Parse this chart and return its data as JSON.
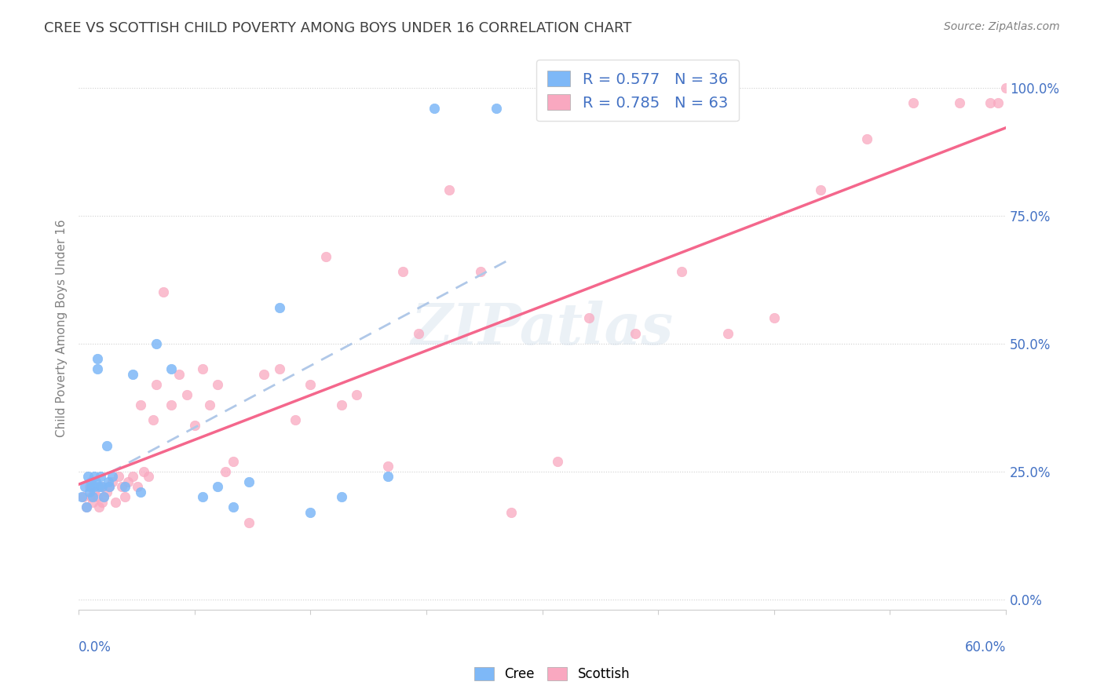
{
  "title": "CREE VS SCOTTISH CHILD POVERTY AMONG BOYS UNDER 16 CORRELATION CHART",
  "source": "Source: ZipAtlas.com",
  "ylabel": "Child Poverty Among Boys Under 16",
  "xlim": [
    0,
    0.6
  ],
  "ylim": [
    -0.02,
    1.08
  ],
  "yticks_right": [
    0.0,
    0.25,
    0.5,
    0.75,
    1.0
  ],
  "ytick_labels_right": [
    "0.0%",
    "25.0%",
    "50.0%",
    "75.0%",
    "100.0%"
  ],
  "legend_r_cree": "R = 0.577",
  "legend_n_cree": "N = 36",
  "legend_r_scot": "R = 0.785",
  "legend_n_scot": "N = 63",
  "color_cree": "#7EB8F7",
  "color_scot": "#F9A8C0",
  "color_cree_line": "#4472C4",
  "color_scot_line": "#F4678C",
  "color_title": "#404040",
  "color_source": "#808080",
  "color_axis_label": "#808080",
  "color_tick_blue": "#4472C4",
  "watermark": "ZIPatlas",
  "cree_pts": [
    [
      0.002,
      0.2
    ],
    [
      0.004,
      0.22
    ],
    [
      0.005,
      0.18
    ],
    [
      0.006,
      0.24
    ],
    [
      0.007,
      0.21
    ],
    [
      0.008,
      0.22
    ],
    [
      0.008,
      0.23
    ],
    [
      0.009,
      0.2
    ],
    [
      0.01,
      0.22
    ],
    [
      0.01,
      0.24
    ],
    [
      0.011,
      0.23
    ],
    [
      0.012,
      0.45
    ],
    [
      0.012,
      0.47
    ],
    [
      0.013,
      0.22
    ],
    [
      0.014,
      0.24
    ],
    [
      0.015,
      0.22
    ],
    [
      0.016,
      0.2
    ],
    [
      0.018,
      0.3
    ],
    [
      0.019,
      0.23
    ],
    [
      0.02,
      0.22
    ],
    [
      0.022,
      0.24
    ],
    [
      0.03,
      0.22
    ],
    [
      0.035,
      0.44
    ],
    [
      0.04,
      0.21
    ],
    [
      0.05,
      0.5
    ],
    [
      0.06,
      0.45
    ],
    [
      0.08,
      0.2
    ],
    [
      0.09,
      0.22
    ],
    [
      0.1,
      0.18
    ],
    [
      0.11,
      0.23
    ],
    [
      0.13,
      0.57
    ],
    [
      0.15,
      0.17
    ],
    [
      0.17,
      0.2
    ],
    [
      0.2,
      0.24
    ],
    [
      0.23,
      0.96
    ],
    [
      0.27,
      0.96
    ]
  ],
  "scot_pts": [
    [
      0.003,
      0.2
    ],
    [
      0.005,
      0.18
    ],
    [
      0.007,
      0.22
    ],
    [
      0.008,
      0.2
    ],
    [
      0.009,
      0.19
    ],
    [
      0.01,
      0.21
    ],
    [
      0.012,
      0.2
    ],
    [
      0.013,
      0.18
    ],
    [
      0.014,
      0.22
    ],
    [
      0.015,
      0.19
    ],
    [
      0.016,
      0.2
    ],
    [
      0.018,
      0.21
    ],
    [
      0.02,
      0.22
    ],
    [
      0.022,
      0.23
    ],
    [
      0.024,
      0.19
    ],
    [
      0.026,
      0.24
    ],
    [
      0.028,
      0.22
    ],
    [
      0.03,
      0.2
    ],
    [
      0.032,
      0.23
    ],
    [
      0.035,
      0.24
    ],
    [
      0.038,
      0.22
    ],
    [
      0.04,
      0.38
    ],
    [
      0.042,
      0.25
    ],
    [
      0.045,
      0.24
    ],
    [
      0.048,
      0.35
    ],
    [
      0.05,
      0.42
    ],
    [
      0.055,
      0.6
    ],
    [
      0.06,
      0.38
    ],
    [
      0.065,
      0.44
    ],
    [
      0.07,
      0.4
    ],
    [
      0.075,
      0.34
    ],
    [
      0.08,
      0.45
    ],
    [
      0.085,
      0.38
    ],
    [
      0.09,
      0.42
    ],
    [
      0.095,
      0.25
    ],
    [
      0.1,
      0.27
    ],
    [
      0.11,
      0.15
    ],
    [
      0.12,
      0.44
    ],
    [
      0.13,
      0.45
    ],
    [
      0.14,
      0.35
    ],
    [
      0.15,
      0.42
    ],
    [
      0.16,
      0.67
    ],
    [
      0.17,
      0.38
    ],
    [
      0.18,
      0.4
    ],
    [
      0.2,
      0.26
    ],
    [
      0.21,
      0.64
    ],
    [
      0.22,
      0.52
    ],
    [
      0.24,
      0.8
    ],
    [
      0.26,
      0.64
    ],
    [
      0.28,
      0.17
    ],
    [
      0.31,
      0.27
    ],
    [
      0.33,
      0.55
    ],
    [
      0.36,
      0.52
    ],
    [
      0.39,
      0.64
    ],
    [
      0.42,
      0.52
    ],
    [
      0.45,
      0.55
    ],
    [
      0.48,
      0.8
    ],
    [
      0.51,
      0.9
    ],
    [
      0.54,
      0.97
    ],
    [
      0.57,
      0.97
    ],
    [
      0.59,
      0.97
    ],
    [
      0.595,
      0.97
    ],
    [
      0.6,
      1.0
    ]
  ],
  "cree_line_x": [
    0.02,
    0.28
  ],
  "scot_line_x": [
    0.0,
    0.6
  ]
}
